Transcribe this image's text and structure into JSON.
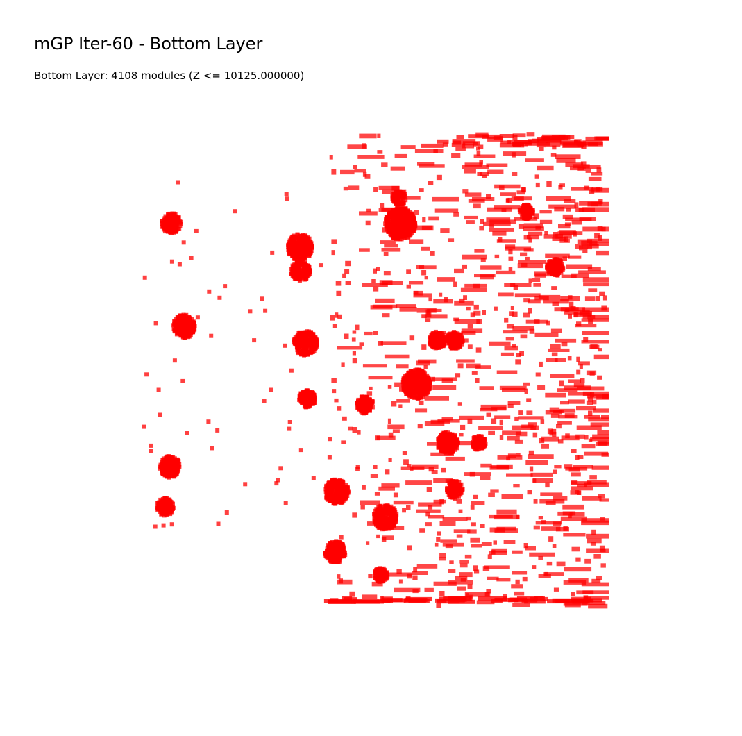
{
  "chart_data": {
    "type": "scatter",
    "title": "mGP Iter-60 - Bottom Layer",
    "subtitle": "Bottom Layer: 4108 modules (Z <= 10125.000000)",
    "marker_color": "#ff0000",
    "axes_visible": false,
    "grid": false,
    "legend": "none",
    "module_count": 4108,
    "z_threshold": 10125.0,
    "clusters": [
      {
        "cx": 247,
        "cy": 322,
        "r": 14
      },
      {
        "cx": 432,
        "cy": 356,
        "r": 18
      },
      {
        "cx": 433,
        "cy": 390,
        "r": 14
      },
      {
        "cx": 577,
        "cy": 322,
        "r": 22
      },
      {
        "cx": 575,
        "cy": 285,
        "r": 10
      },
      {
        "cx": 265,
        "cy": 470,
        "r": 16
      },
      {
        "cx": 440,
        "cy": 494,
        "r": 17
      },
      {
        "cx": 600,
        "cy": 553,
        "r": 20
      },
      {
        "cx": 443,
        "cy": 574,
        "r": 12
      },
      {
        "cx": 245,
        "cy": 672,
        "r": 15
      },
      {
        "cx": 238,
        "cy": 730,
        "r": 12
      },
      {
        "cx": 645,
        "cy": 638,
        "r": 15
      },
      {
        "cx": 485,
        "cy": 708,
        "r": 17
      },
      {
        "cx": 555,
        "cy": 745,
        "r": 17
      },
      {
        "cx": 483,
        "cy": 795,
        "r": 15
      },
      {
        "cx": 549,
        "cy": 828,
        "r": 10
      },
      {
        "cx": 655,
        "cy": 705,
        "r": 12
      },
      {
        "cx": 526,
        "cy": 583,
        "r": 12
      },
      {
        "cx": 690,
        "cy": 638,
        "r": 10
      },
      {
        "cx": 630,
        "cy": 490,
        "r": 12
      },
      {
        "cx": 655,
        "cy": 490,
        "r": 12
      },
      {
        "cx": 800,
        "cy": 385,
        "r": 12
      },
      {
        "cx": 758,
        "cy": 305,
        "r": 10
      }
    ],
    "x_range": [
      200,
      877
    ],
    "y_range": [
      190,
      870
    ]
  }
}
